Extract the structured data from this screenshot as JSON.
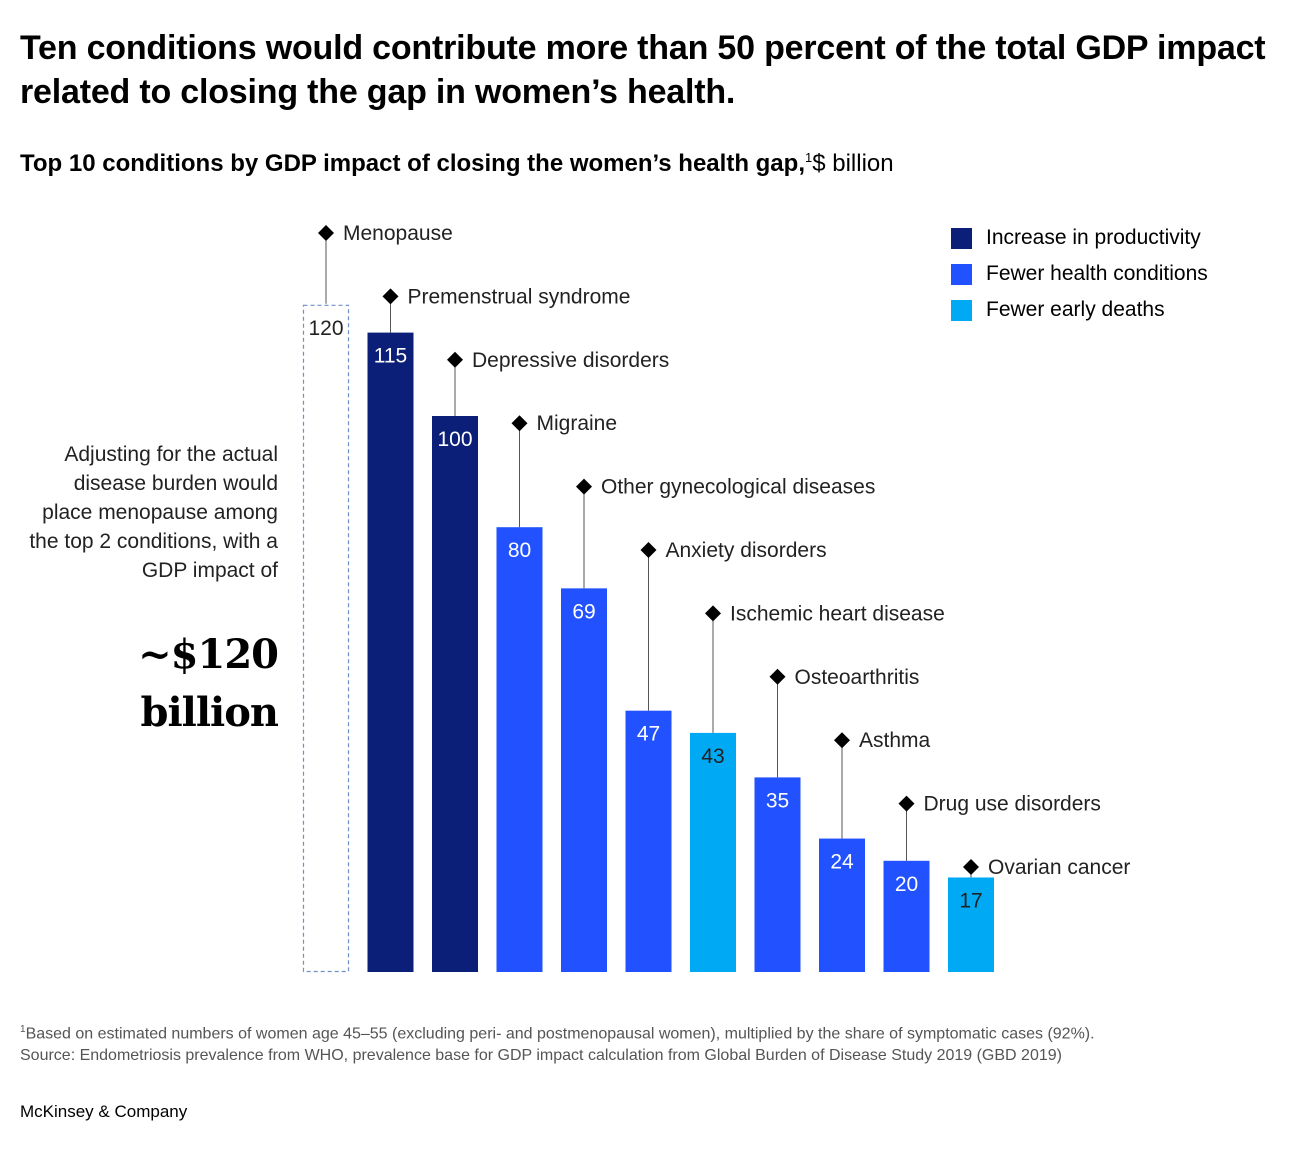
{
  "headline": "Ten conditions would contribute more than 50 percent of the total GDP impact related to closing the gap in women’s health.",
  "subtitle": {
    "bold": "Top 10 conditions by GDP impact of closing the women’s health gap,",
    "footnote_marker": "1",
    "unit": "$ billion"
  },
  "side_note": {
    "text": "Adjusting for the actual disease burden would place menopause among the top 2 conditions, with a GDP impact of",
    "value_line1": "~$120",
    "value_line2": "billion"
  },
  "legend": [
    {
      "label": "Increase in productivity",
      "color": "#0b1f78"
    },
    {
      "label": "Fewer health conditions",
      "color": "#2251ff"
    },
    {
      "label": "Fewer early deaths",
      "color": "#00a9f4"
    }
  ],
  "chart_data": {
    "type": "bar",
    "categories": [
      "Menopause",
      "Premenstrual syndrome",
      "Depressive disorders",
      "Migraine",
      "Other gynecological diseases",
      "Anxiety disorders",
      "Ischemic heart disease",
      "Osteoarthritis",
      "Asthma",
      "Drug use disorders",
      "Ovarian cancer"
    ],
    "values": [
      120,
      115,
      100,
      80,
      69,
      47,
      43,
      35,
      24,
      20,
      17
    ],
    "value_labels": [
      "120",
      "115",
      "100",
      "80",
      "69",
      "47",
      "43",
      "35",
      "24",
      "20",
      "17"
    ],
    "category_driver": [
      "adjusted estimate (dashed outline)",
      "Increase in productivity",
      "Increase in productivity",
      "Fewer health conditions",
      "Fewer health conditions",
      "Fewer health conditions",
      "Fewer early deaths",
      "Fewer health conditions",
      "Fewer health conditions",
      "Fewer health conditions",
      "Fewer early deaths"
    ],
    "colors": [
      "none",
      "#0b1f78",
      "#0b1f78",
      "#2251ff",
      "#2251ff",
      "#2251ff",
      "#00a9f4",
      "#2251ff",
      "#2251ff",
      "#2251ff",
      "#00a9f4"
    ],
    "ylim": [
      0,
      120
    ],
    "grid": false,
    "legend_position": "top-right"
  },
  "footnote": {
    "marker": "1",
    "line1": "Based on estimated numbers of women age 45–55 (excluding peri- and postmenopausal women), multiplied by the share of symptomatic cases (92%).",
    "line2": "Source: Endometriosis prevalence from WHO, prevalence base for GDP impact calculation from Global Burden of Disease Study 2019 (GBD 2019)"
  },
  "brand": "McKinsey & Company"
}
